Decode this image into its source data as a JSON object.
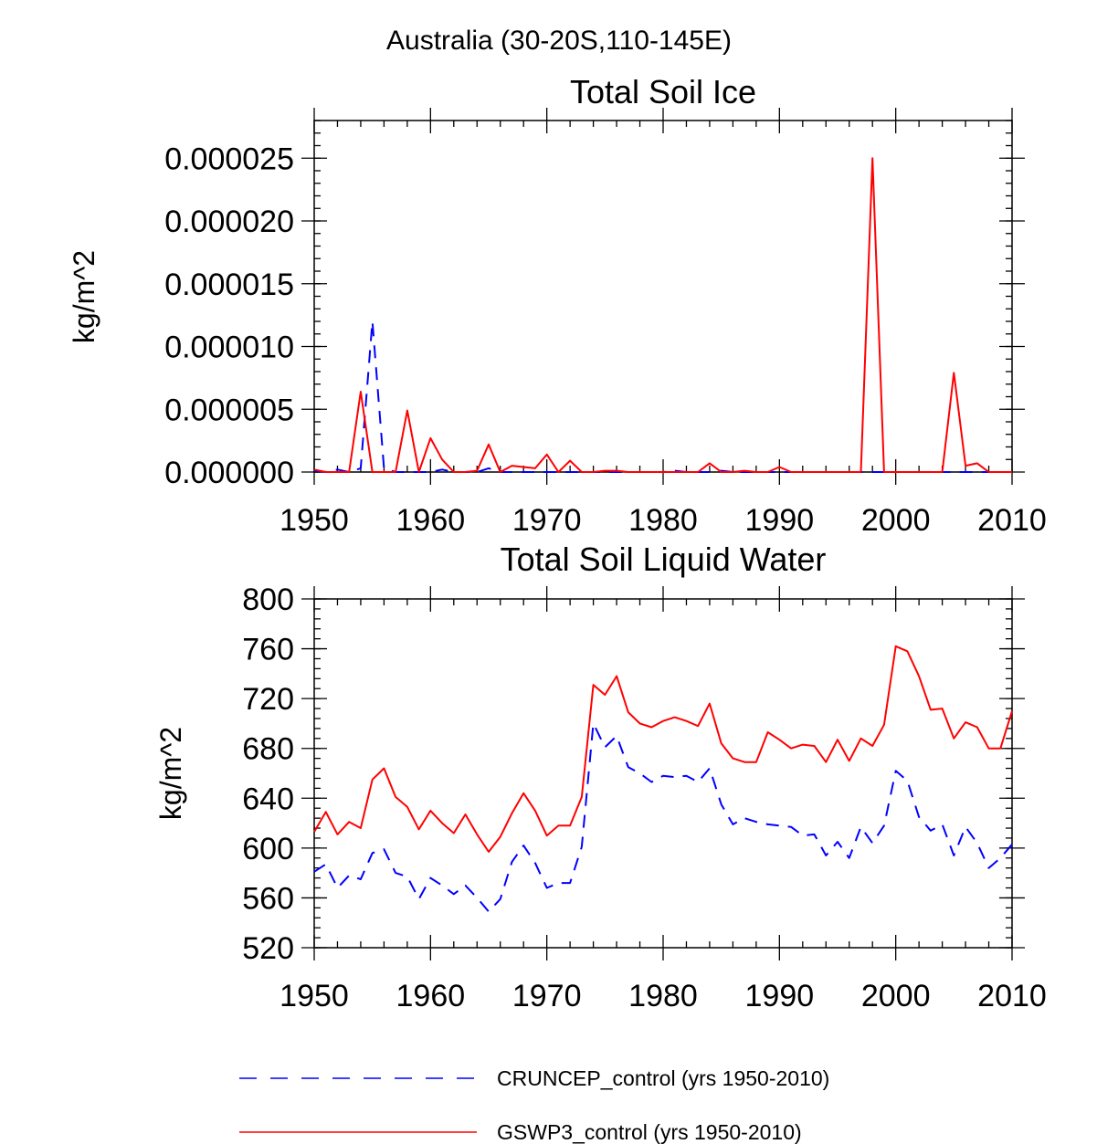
{
  "figure": {
    "title": "Australia (30-20S,110-145E)"
  },
  "legend": {
    "placement": "bottom",
    "entries": [
      {
        "series": "CRUNCEP_control (yrs 1950-2010)",
        "color": "#0000ff",
        "style": "dashed"
      },
      {
        "series": "GSWP3_control (yrs 1950-2010)",
        "color": "#ff0000",
        "style": "solid"
      }
    ]
  },
  "chart_data": [
    {
      "type": "line",
      "title": "Total Soil Ice",
      "xlabel": "",
      "ylabel": "kg/m^2",
      "xlim": [
        1950,
        2010
      ],
      "ylim": [
        0,
        2.8e-05
      ],
      "xticks": [
        "1950",
        "1960",
        "1970",
        "1980",
        "1990",
        "2000",
        "2010"
      ],
      "yticks": [
        "0.000000",
        "0.000005",
        "0.000010",
        "0.000015",
        "0.000020",
        "0.000025"
      ],
      "ytick_values": [
        0,
        5e-06,
        1e-05,
        1.5e-05,
        2e-05,
        2.5e-05
      ],
      "grid": false,
      "x": [
        1950,
        1951,
        1952,
        1953,
        1954,
        1955,
        1956,
        1957,
        1958,
        1959,
        1960,
        1961,
        1962,
        1963,
        1964,
        1965,
        1966,
        1967,
        1968,
        1969,
        1970,
        1971,
        1972,
        1973,
        1974,
        1975,
        1976,
        1977,
        1978,
        1979,
        1980,
        1981,
        1982,
        1983,
        1984,
        1985,
        1986,
        1987,
        1988,
        1989,
        1990,
        1991,
        1992,
        1993,
        1994,
        1995,
        1996,
        1997,
        1998,
        1999,
        2000,
        2001,
        2002,
        2003,
        2004,
        2005,
        2006,
        2007,
        2008,
        2009,
        2010
      ],
      "series": [
        {
          "name": "CRUNCEP_control (yrs 1950-2010)",
          "color": "#0000ff",
          "style": "dashed",
          "values": [
            1e-07,
            0,
            2e-07,
            0,
            3e-07,
            1.2e-05,
            3e-07,
            0,
            0,
            0,
            0,
            2e-07,
            0,
            0,
            0,
            3e-07,
            0,
            0,
            0,
            0,
            0,
            0,
            0,
            0,
            0,
            0,
            0,
            0,
            0,
            0,
            0,
            1e-07,
            0,
            0,
            0,
            1e-07,
            0,
            0,
            0,
            0,
            0,
            0,
            0,
            0,
            0,
            0,
            0,
            0,
            0,
            0,
            0,
            0,
            0,
            0,
            0,
            0,
            0,
            0,
            0,
            0,
            0
          ]
        },
        {
          "name": "GSWP3_control (yrs 1950-2010)",
          "color": "#ff0000",
          "style": "solid",
          "values": [
            2e-07,
            0,
            0,
            0,
            6.4e-06,
            0,
            0,
            0,
            4.9e-06,
            0,
            2.7e-06,
            1e-06,
            0,
            0,
            1e-07,
            2.2e-06,
            0,
            5e-07,
            4e-07,
            3e-07,
            1.4e-06,
            0,
            9e-07,
            0,
            0,
            1e-07,
            1e-07,
            0,
            0,
            0,
            0,
            0,
            0,
            0,
            7e-07,
            0,
            0,
            1e-07,
            0,
            0,
            4e-07,
            0,
            0,
            0,
            0,
            0,
            0,
            0,
            2.5e-05,
            0,
            0,
            0,
            0,
            0,
            0,
            7.9e-06,
            5e-07,
            7e-07,
            0,
            0,
            0
          ]
        }
      ]
    },
    {
      "type": "line",
      "title": "Total Soil Liquid Water",
      "xlabel": "",
      "ylabel": "kg/m^2",
      "xlim": [
        1950,
        2010
      ],
      "ylim": [
        520,
        800
      ],
      "xticks": [
        "1950",
        "1960",
        "1970",
        "1980",
        "1990",
        "2000",
        "2010"
      ],
      "yticks": [
        "520",
        "560",
        "600",
        "640",
        "680",
        "720",
        "760",
        "800"
      ],
      "ytick_values": [
        520,
        560,
        600,
        640,
        680,
        720,
        760,
        800
      ],
      "grid": false,
      "x": [
        1950,
        1951,
        1952,
        1953,
        1954,
        1955,
        1956,
        1957,
        1958,
        1959,
        1960,
        1961,
        1962,
        1963,
        1964,
        1965,
        1966,
        1967,
        1968,
        1969,
        1970,
        1971,
        1972,
        1973,
        1974,
        1975,
        1976,
        1977,
        1978,
        1979,
        1980,
        1981,
        1982,
        1983,
        1984,
        1985,
        1986,
        1987,
        1988,
        1989,
        1990,
        1991,
        1992,
        1993,
        1994,
        1995,
        1996,
        1997,
        1998,
        1999,
        2000,
        2001,
        2002,
        2003,
        2004,
        2005,
        2006,
        2007,
        2008,
        2009,
        2010
      ],
      "series": [
        {
          "name": "CRUNCEP_control (yrs 1950-2010)",
          "color": "#0000ff",
          "style": "dashed",
          "values": [
            581,
            587,
            568,
            578,
            575,
            596,
            599,
            580,
            577,
            559,
            576,
            570,
            563,
            570,
            560,
            549,
            559,
            589,
            602,
            588,
            568,
            572,
            572,
            601,
            700,
            681,
            690,
            665,
            660,
            653,
            658,
            657,
            658,
            653,
            664,
            635,
            619,
            624,
            621,
            619,
            618,
            617,
            610,
            611,
            594,
            605,
            592,
            617,
            604,
            618,
            662,
            654,
            625,
            614,
            619,
            594,
            617,
            604,
            584,
            592,
            603
          ]
        },
        {
          "name": "GSWP3_control (yrs 1950-2010)",
          "color": "#ff0000",
          "style": "solid",
          "values": [
            613,
            629,
            611,
            621,
            616,
            655,
            664,
            641,
            633,
            615,
            630,
            620,
            612,
            627,
            611,
            597,
            609,
            628,
            644,
            630,
            610,
            618,
            618,
            641,
            731,
            723,
            738,
            709,
            700,
            697,
            702,
            705,
            702,
            698,
            716,
            684,
            672,
            669,
            669,
            693,
            687,
            680,
            683,
            682,
            669,
            687,
            670,
            688,
            682,
            699,
            762,
            758,
            738,
            711,
            712,
            688,
            701,
            697,
            680,
            680,
            710
          ]
        }
      ]
    }
  ]
}
